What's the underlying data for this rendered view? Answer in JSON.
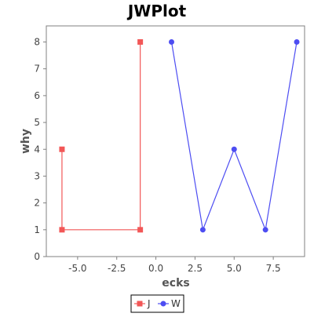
{
  "chart_data": {
    "type": "line",
    "title": "JWPlot",
    "xlabel": "ecks",
    "ylabel": "why",
    "xlim": [
      -7.0,
      9.5
    ],
    "ylim": [
      0,
      8.6
    ],
    "x_ticks": [
      -5.0,
      -2.5,
      0.0,
      2.5,
      5.0,
      7.5
    ],
    "x_tick_labels": [
      "-5.0",
      "-2.5",
      "0.0",
      "2.5",
      "5.0",
      "7.5"
    ],
    "y_ticks": [
      0,
      1,
      2,
      3,
      4,
      5,
      6,
      7,
      8
    ],
    "y_tick_labels": [
      "0",
      "1",
      "2",
      "3",
      "4",
      "5",
      "6",
      "7",
      "8"
    ],
    "grid": false,
    "legend": "bottom-center",
    "series": [
      {
        "name": "J",
        "color": "#f25757",
        "marker": "square",
        "x": [
          -6,
          -6,
          -1,
          -1
        ],
        "y": [
          4,
          1,
          1,
          8
        ]
      },
      {
        "name": "W",
        "color": "#4d4df2",
        "marker": "circle",
        "x": [
          1,
          3,
          5,
          7,
          9
        ],
        "y": [
          8,
          1,
          4,
          1,
          8
        ]
      }
    ]
  }
}
